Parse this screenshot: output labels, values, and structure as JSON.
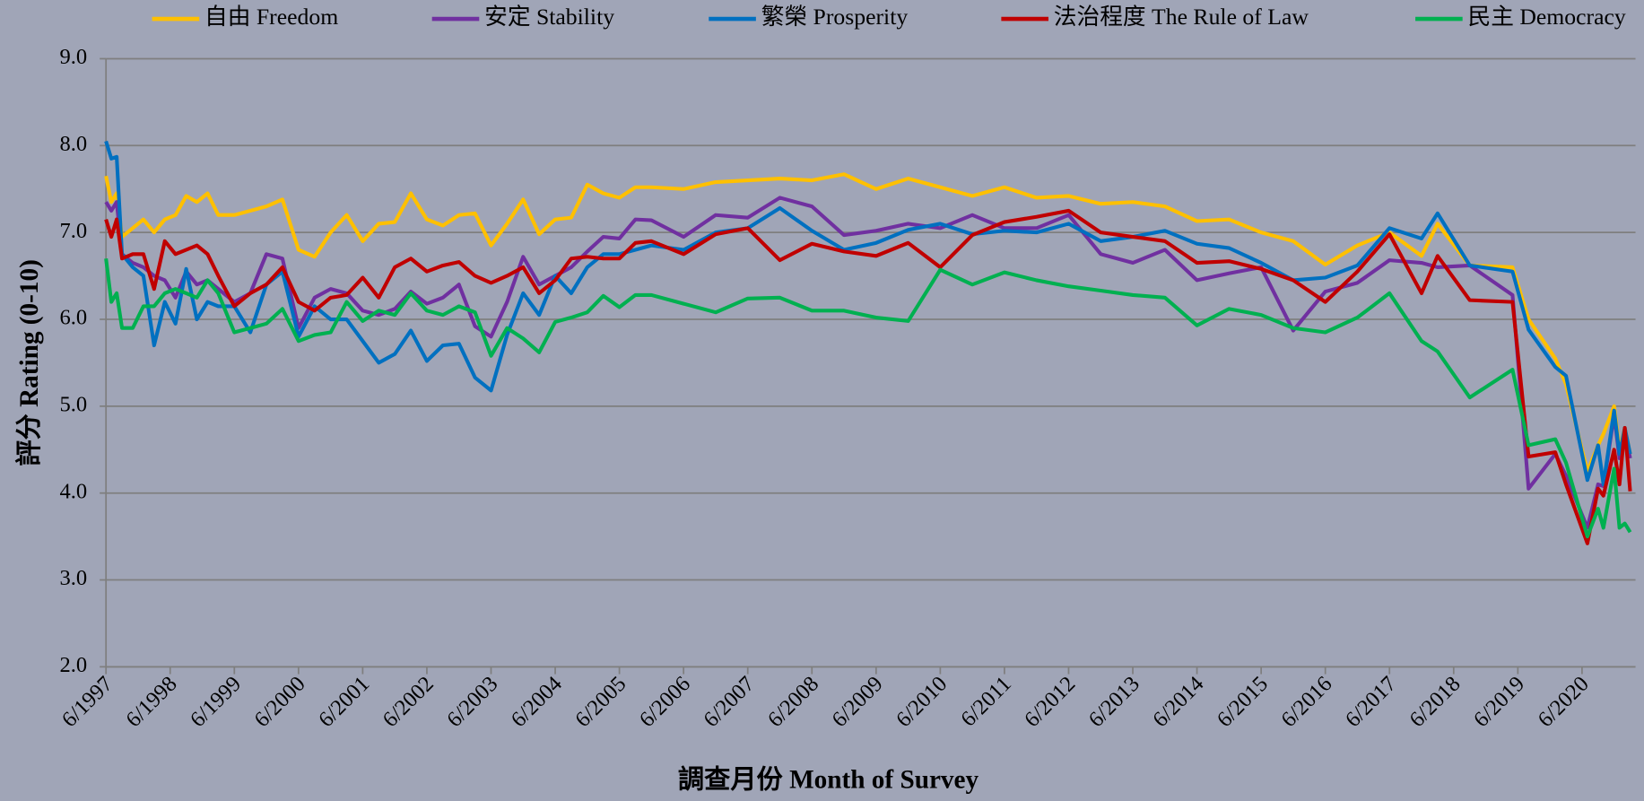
{
  "chart_data": {
    "type": "line",
    "x_label": "調查月份 Month of Survey",
    "y_label": "評分 Rating (0-10)",
    "x": [
      "6/1997",
      "7/1997",
      "8/1997",
      "9/1997",
      "11/1997",
      "1/1998",
      "3/1998",
      "5/1998",
      "7/1998",
      "9/1998",
      "11/1998",
      "1/1999",
      "3/1999",
      "6/1999",
      "9/1999",
      "12/1999",
      "3/2000",
      "6/2000",
      "9/2000",
      "12/2000",
      "3/2001",
      "6/2001",
      "9/2001",
      "12/2001",
      "3/2002",
      "6/2002",
      "9/2002",
      "12/2002",
      "3/2003",
      "6/2003",
      "9/2003",
      "12/2003",
      "3/2004",
      "6/2004",
      "9/2004",
      "12/2004",
      "3/2005",
      "6/2005",
      "9/2005",
      "12/2005",
      "6/2006",
      "12/2006",
      "6/2007",
      "12/2007",
      "6/2008",
      "12/2008",
      "6/2009",
      "12/2009",
      "6/2010",
      "12/2010",
      "6/2011",
      "12/2011",
      "6/2012",
      "12/2012",
      "6/2013",
      "12/2013",
      "6/2014",
      "12/2014",
      "6/2015",
      "12/2015",
      "6/2016",
      "12/2016",
      "6/2017",
      "12/2017",
      "3/2018",
      "9/2018",
      "5/2019",
      "8/2019",
      "1/2020",
      "3/2020",
      "7/2020",
      "9/2020",
      "10/2020",
      "12/2020",
      "1/2021",
      "2/2021",
      "3/2021"
    ],
    "xlim": [
      "6/1997",
      "4/2021"
    ],
    "xticks": [
      "6/1997",
      "6/1998",
      "6/1999",
      "6/2000",
      "6/2001",
      "6/2002",
      "6/2003",
      "6/2004",
      "6/2005",
      "6/2006",
      "6/2007",
      "6/2008",
      "6/2009",
      "6/2010",
      "6/2011",
      "6/2012",
      "6/2013",
      "6/2014",
      "6/2015",
      "6/2016",
      "6/2017",
      "6/2018",
      "6/2019",
      "6/2020"
    ],
    "ylim": [
      2,
      9
    ],
    "yticks": [
      {
        "value": 2,
        "label": "2.0"
      },
      {
        "value": 3,
        "label": "3.0"
      },
      {
        "value": 4,
        "label": "4.0"
      },
      {
        "value": 5,
        "label": "5.0"
      },
      {
        "value": 6,
        "label": "6.0"
      },
      {
        "value": 7,
        "label": "7.0"
      },
      {
        "value": 8,
        "label": "8.0"
      },
      {
        "value": 9,
        "label": "9.0"
      }
    ],
    "grid": true,
    "series": [
      {
        "name": "自由 Freedom",
        "color": "#ffc000",
        "values": [
          7.65,
          7.35,
          7.45,
          6.95,
          7.05,
          7.15,
          7.0,
          7.15,
          7.2,
          7.42,
          7.35,
          7.45,
          7.2,
          7.2,
          7.25,
          7.3,
          7.38,
          6.8,
          6.72,
          7.0,
          7.2,
          6.9,
          7.1,
          7.12,
          7.45,
          7.15,
          7.08,
          7.2,
          7.22,
          6.85,
          7.1,
          7.38,
          6.98,
          7.15,
          7.17,
          7.55,
          7.45,
          7.4,
          7.52,
          7.52,
          7.5,
          7.58,
          7.6,
          7.62,
          7.6,
          7.67,
          7.5,
          7.62,
          7.52,
          7.42,
          7.52,
          7.4,
          7.42,
          7.33,
          7.35,
          7.3,
          7.13,
          7.15,
          7.0,
          6.9,
          6.63,
          6.85,
          7.0,
          6.73,
          7.1,
          6.62,
          6.6,
          6.0,
          5.55,
          5.25,
          4.25,
          4.55,
          4.68,
          5.0,
          4.5,
          4.75,
          4.45
        ]
      },
      {
        "name": "安定 Stability",
        "color": "#7030a0",
        "values": [
          7.35,
          7.25,
          7.35,
          6.75,
          6.65,
          6.6,
          6.5,
          6.45,
          6.25,
          6.55,
          6.4,
          6.45,
          6.35,
          6.2,
          6.3,
          6.75,
          6.7,
          5.9,
          6.25,
          6.35,
          6.3,
          6.1,
          6.05,
          6.12,
          6.32,
          6.18,
          6.25,
          6.4,
          5.92,
          5.8,
          6.2,
          6.72,
          6.4,
          6.5,
          6.6,
          6.78,
          6.95,
          6.93,
          7.15,
          7.14,
          6.95,
          7.2,
          7.17,
          7.4,
          7.3,
          6.97,
          7.02,
          7.1,
          7.05,
          7.2,
          7.05,
          7.05,
          7.2,
          6.75,
          6.65,
          6.8,
          6.45,
          6.53,
          6.6,
          5.87,
          6.32,
          6.42,
          6.68,
          6.65,
          6.6,
          6.62,
          6.28,
          4.05,
          4.45,
          4.2,
          3.6,
          4.1,
          4.08,
          4.9,
          4.4,
          4.7,
          4.4
        ]
      },
      {
        "name": "繁榮 Prosperity",
        "color": "#0070c0",
        "values": [
          8.05,
          7.85,
          7.87,
          6.75,
          6.6,
          6.5,
          5.7,
          6.2,
          5.95,
          6.58,
          6.0,
          6.2,
          6.15,
          6.15,
          5.85,
          6.4,
          6.55,
          5.8,
          6.15,
          6.0,
          6.0,
          5.75,
          5.5,
          5.6,
          5.87,
          5.52,
          5.7,
          5.72,
          5.33,
          5.18,
          5.82,
          6.3,
          6.05,
          6.5,
          6.3,
          6.6,
          6.75,
          6.75,
          6.8,
          6.85,
          6.8,
          7.0,
          7.05,
          7.28,
          7.02,
          6.8,
          6.88,
          7.03,
          7.1,
          6.98,
          7.02,
          7.0,
          7.1,
          6.9,
          6.95,
          7.02,
          6.87,
          6.82,
          6.65,
          6.45,
          6.48,
          6.62,
          7.05,
          6.93,
          7.22,
          6.62,
          6.55,
          5.88,
          5.45,
          5.35,
          4.15,
          4.55,
          4.1,
          4.95,
          4.45,
          4.75,
          4.45
        ]
      },
      {
        "name": "法治程度 The Rule of Law",
        "color": "#c00000",
        "values": [
          7.15,
          6.95,
          7.15,
          6.7,
          6.75,
          6.75,
          6.35,
          6.9,
          6.75,
          6.8,
          6.85,
          6.75,
          6.5,
          6.15,
          6.3,
          6.4,
          6.6,
          6.2,
          6.1,
          6.25,
          6.28,
          6.48,
          6.25,
          6.6,
          6.7,
          6.55,
          6.62,
          6.66,
          6.5,
          6.42,
          6.5,
          6.6,
          6.3,
          6.45,
          6.7,
          6.72,
          6.7,
          6.7,
          6.88,
          6.9,
          6.75,
          6.98,
          7.05,
          6.68,
          6.87,
          6.78,
          6.73,
          6.88,
          6.6,
          6.97,
          7.12,
          7.18,
          7.25,
          7.0,
          6.95,
          6.9,
          6.65,
          6.67,
          6.58,
          6.45,
          6.2,
          6.55,
          6.98,
          6.3,
          6.73,
          6.22,
          6.2,
          4.42,
          4.47,
          4.1,
          3.42,
          4.05,
          3.97,
          4.5,
          4.1,
          4.75,
          4.02
        ]
      },
      {
        "name": "民主 Democracy",
        "color": "#00b050",
        "values": [
          6.7,
          6.2,
          6.3,
          5.9,
          5.9,
          6.15,
          6.15,
          6.3,
          6.35,
          6.3,
          6.25,
          6.45,
          6.3,
          5.85,
          5.9,
          5.95,
          6.12,
          5.75,
          5.82,
          5.85,
          6.2,
          5.98,
          6.1,
          6.05,
          6.3,
          6.1,
          6.05,
          6.15,
          6.08,
          5.58,
          5.9,
          5.78,
          5.62,
          5.97,
          6.02,
          6.08,
          6.27,
          6.14,
          6.28,
          6.28,
          6.18,
          6.08,
          6.24,
          6.25,
          6.1,
          6.1,
          6.02,
          5.98,
          6.57,
          6.4,
          6.54,
          6.45,
          6.38,
          6.33,
          6.28,
          6.25,
          5.93,
          6.12,
          6.05,
          5.9,
          5.85,
          6.02,
          6.3,
          5.75,
          5.63,
          5.1,
          5.42,
          4.55,
          4.62,
          4.35,
          3.5,
          3.82,
          3.6,
          4.28,
          3.6,
          3.65,
          3.55
        ]
      }
    ]
  }
}
